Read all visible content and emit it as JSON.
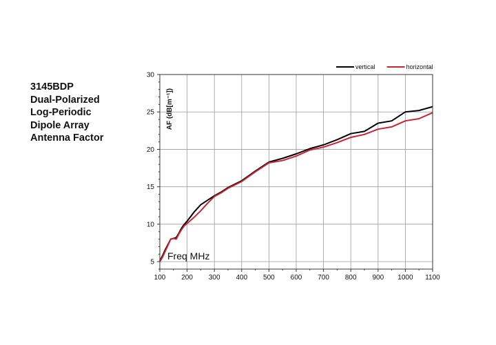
{
  "title_lines": [
    "3145BDP",
    "Dual-Polarized",
    "Log-Periodic",
    "Dipole Array",
    "Antenna Factor"
  ],
  "chart_data": {
    "type": "line",
    "title": "3145BDP Dual-Polarized Log-Periodic Dipole Array Antenna Factor",
    "xlabel": "Freq MHz",
    "ylabel": "AF (dB[m⁻¹])",
    "xlim": [
      100,
      1100
    ],
    "ylim": [
      4,
      30
    ],
    "x_ticks": [
      100,
      200,
      300,
      400,
      500,
      600,
      700,
      800,
      900,
      1000,
      1100
    ],
    "y_ticks": [
      5,
      10,
      15,
      20,
      25,
      30
    ],
    "grid": true,
    "legend_position": "top-right",
    "series": [
      {
        "name": "vertical",
        "color": "#000000",
        "x": [
          100,
          110,
          120,
          130,
          140,
          150,
          160,
          170,
          180,
          190,
          200,
          225,
          250,
          275,
          300,
          325,
          350,
          400,
          450,
          500,
          550,
          600,
          650,
          700,
          750,
          800,
          850,
          900,
          950,
          1000,
          1050,
          1100
        ],
        "y": [
          5.1,
          5.8,
          6.6,
          7.3,
          8.0,
          8.1,
          8.2,
          8.8,
          9.5,
          10.0,
          10.4,
          11.6,
          12.6,
          13.2,
          13.8,
          14.3,
          14.9,
          15.8,
          17.1,
          18.3,
          18.8,
          19.4,
          20.1,
          20.6,
          21.3,
          22.1,
          22.4,
          23.5,
          23.8,
          25.0,
          25.2,
          25.7
        ]
      },
      {
        "name": "horizontal",
        "color": "#cc2233",
        "x": [
          100,
          110,
          120,
          130,
          140,
          150,
          160,
          170,
          180,
          190,
          200,
          225,
          250,
          275,
          300,
          325,
          350,
          400,
          450,
          500,
          550,
          600,
          650,
          700,
          750,
          800,
          850,
          900,
          950,
          1000,
          1050,
          1100
        ],
        "y": [
          5.0,
          5.6,
          6.4,
          7.2,
          8.0,
          8.1,
          8.0,
          8.7,
          9.3,
          9.8,
          10.1,
          10.9,
          11.8,
          12.8,
          13.7,
          14.2,
          14.8,
          15.7,
          17.0,
          18.2,
          18.5,
          19.1,
          19.9,
          20.3,
          20.9,
          21.6,
          22.0,
          22.7,
          23.0,
          23.8,
          24.1,
          24.9
        ]
      }
    ]
  }
}
